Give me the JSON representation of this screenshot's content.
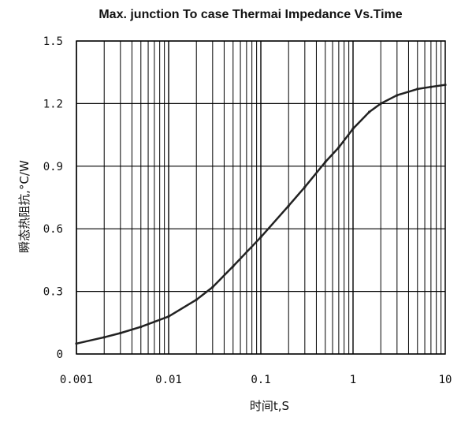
{
  "chart_data": {
    "type": "line",
    "title": "Max. junction To case Thermai Impedance Vs.Time",
    "xlabel": "时间t,S",
    "ylabel": "瞬态热阻抗,°C/W",
    "x_scale": "log",
    "xlim": [
      0.001,
      10
    ],
    "ylim": [
      0,
      1.5
    ],
    "x_tick_labels": [
      "0.001",
      "0.01",
      "0.1",
      "1",
      "10"
    ],
    "x_tick_values": [
      0.001,
      0.01,
      0.1,
      1,
      10
    ],
    "y_tick_labels": [
      "0",
      "0.3",
      "0.6",
      "0.9",
      "1.2",
      "1.5"
    ],
    "y_tick_values": [
      0,
      0.3,
      0.6,
      0.9,
      1.2,
      1.5
    ],
    "grid": true,
    "colors": {
      "line": "#222222",
      "grid": "#000000"
    },
    "series": [
      {
        "x": [
          0.001,
          0.002,
          0.003,
          0.005,
          0.01,
          0.02,
          0.03,
          0.05,
          0.1,
          0.2,
          0.3,
          0.5,
          0.7,
          1,
          1.5,
          2,
          3,
          5,
          7,
          10
        ],
        "y": [
          0.05,
          0.08,
          0.1,
          0.13,
          0.18,
          0.26,
          0.32,
          0.42,
          0.56,
          0.71,
          0.8,
          0.92,
          0.99,
          1.08,
          1.16,
          1.2,
          1.24,
          1.27,
          1.28,
          1.29
        ]
      }
    ]
  }
}
